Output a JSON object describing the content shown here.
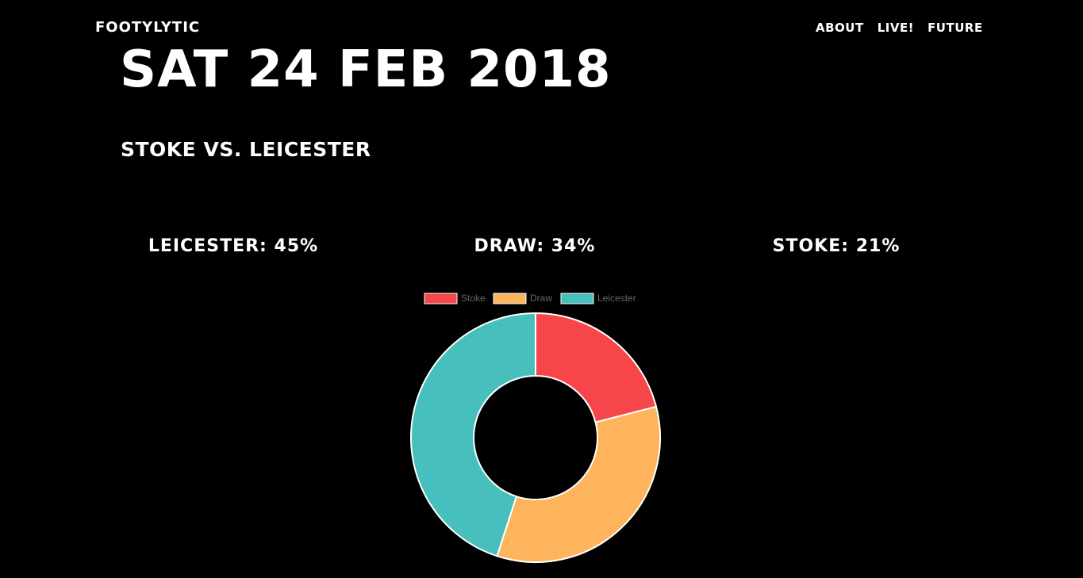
{
  "header": {
    "brand": "FOOTYLYTIC",
    "nav": [
      "ABOUT",
      "LIVE!",
      "FUTURE"
    ]
  },
  "match": {
    "date": "SAT 24 FEB 2018",
    "fixture": "STOKE VS. LEICESTER"
  },
  "probabilities": [
    {
      "label": "LEICESTER: 45%"
    },
    {
      "label": "DRAW: 34%"
    },
    {
      "label": "STOKE: 21%"
    }
  ],
  "chart_data": {
    "type": "pie",
    "variant": "doughnut",
    "categories": [
      "Stoke",
      "Draw",
      "Leicester"
    ],
    "values": [
      21,
      34,
      45
    ],
    "colors": [
      "#F7464A",
      "#FDB45C",
      "#46BFBD"
    ],
    "legend": "top"
  }
}
